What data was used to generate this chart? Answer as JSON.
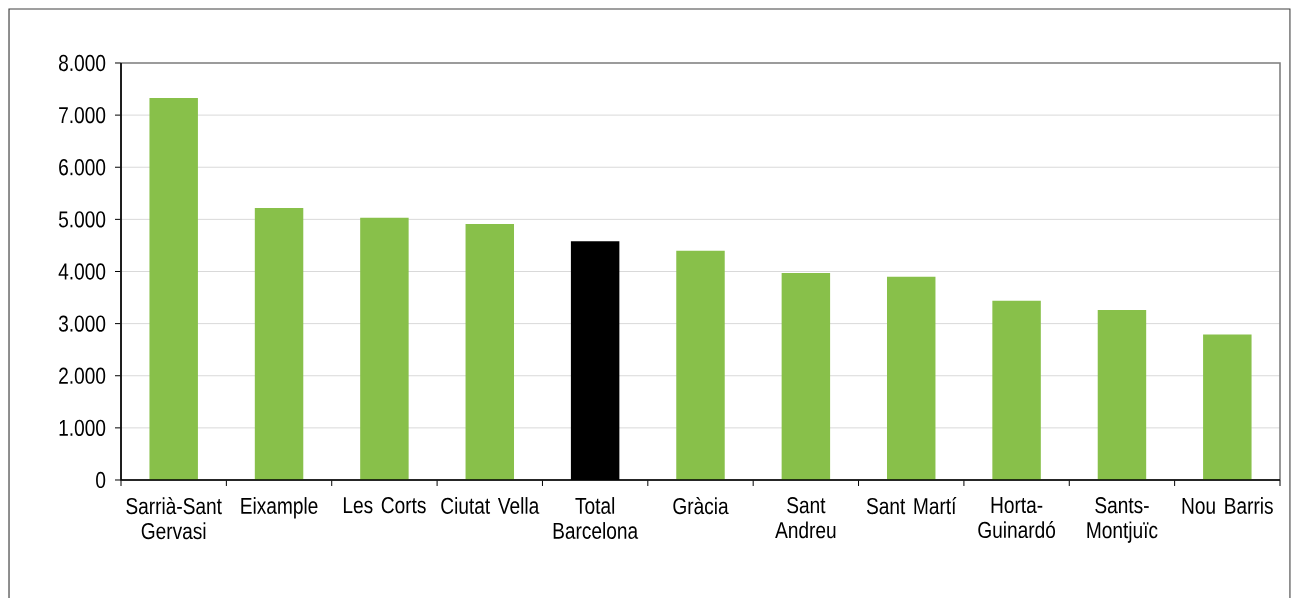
{
  "chart_data": {
    "type": "bar",
    "categories": [
      "Sarrià-Sant Gervasi",
      "Eixample",
      "Les Corts",
      "Ciutat Vella",
      "Total Barcelona",
      "Gràcia",
      "Sant Andreu",
      "Sant Martí",
      "Horta-Guinardó",
      "Sants-Montjuïc",
      "Nou Barris"
    ],
    "values": [
      7330,
      5220,
      5030,
      4910,
      4580,
      4400,
      3970,
      3900,
      3440,
      3260,
      2790
    ],
    "colors": [
      "#88c04a",
      "#88c04a",
      "#88c04a",
      "#88c04a",
      "#000000",
      "#88c04a",
      "#88c04a",
      "#88c04a",
      "#88c04a",
      "#88c04a",
      "#88c04a"
    ],
    "ylim": [
      0,
      8000
    ],
    "yticks": [
      0,
      {
        "value": 1000,
        "label": "1.000"
      },
      {
        "value": 2000,
        "label": "2.000"
      },
      {
        "value": 3000,
        "label": "3.000"
      },
      {
        "value": 4000,
        "label": "4.000"
      },
      {
        "value": 5000,
        "label": "5.000"
      },
      {
        "value": 6000,
        "label": "6.000"
      },
      {
        "value": 7000,
        "label": "7.000"
      },
      {
        "value": 8000,
        "label": "8.000"
      }
    ],
    "grid": "y"
  }
}
